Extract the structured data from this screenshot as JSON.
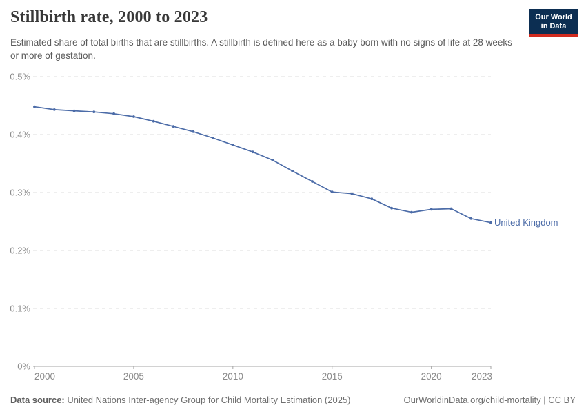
{
  "header": {
    "title": "Stillbirth rate, 2000 to 2023",
    "subtitle": "Estimated share of total births that are stillbirths. A stillbirth is defined here as a baby born with no signs of life at 28 weeks or more of gestation.",
    "logo": {
      "line1": "Our World",
      "line2": "in Data"
    }
  },
  "footer": {
    "data_source_label": "Data source:",
    "data_source_text": "United Nations Inter-agency Group for Child Mortality Estimation (2025)",
    "attribution": "OurWorldinData.org/child-mortality | CC BY"
  },
  "colors": {
    "line": "#4c6ca8",
    "entity_label": "#4c6ca8",
    "gridline": "#dcdcdc",
    "axis_line": "#a5a5a5",
    "axis_text": "#8b8b8b",
    "logo_background": "#0c2e52",
    "logo_stripe": "#d12b1f"
  },
  "chart_data": {
    "type": "line",
    "title": "Stillbirth rate, 2000 to 2023",
    "xlabel": "",
    "ylabel": "",
    "x": [
      2000,
      2001,
      2002,
      2003,
      2004,
      2005,
      2006,
      2007,
      2008,
      2009,
      2010,
      2011,
      2012,
      2013,
      2014,
      2015,
      2016,
      2017,
      2018,
      2019,
      2020,
      2021,
      2022,
      2023
    ],
    "series": [
      {
        "name": "United Kingdom",
        "values": [
          0.448,
          0.443,
          0.441,
          0.439,
          0.436,
          0.431,
          0.423,
          0.414,
          0.405,
          0.394,
          0.382,
          0.37,
          0.356,
          0.337,
          0.319,
          0.301,
          0.298,
          0.289,
          0.273,
          0.266,
          0.271,
          0.272,
          0.255,
          0.248
        ]
      }
    ],
    "unit": "%",
    "ylim": [
      0,
      0.5
    ],
    "yticks": [
      0,
      0.1,
      0.2,
      0.3,
      0.4,
      0.5
    ],
    "ytick_labels": [
      "0%",
      "0.1%",
      "0.2%",
      "0.3%",
      "0.4%",
      "0.5%"
    ],
    "xticks": [
      2000,
      2005,
      2010,
      2015,
      2020,
      2023
    ],
    "grid": "horizontal-dashed",
    "legend_position": "end-of-line",
    "entity_label": "United Kingdom",
    "markers": true
  }
}
